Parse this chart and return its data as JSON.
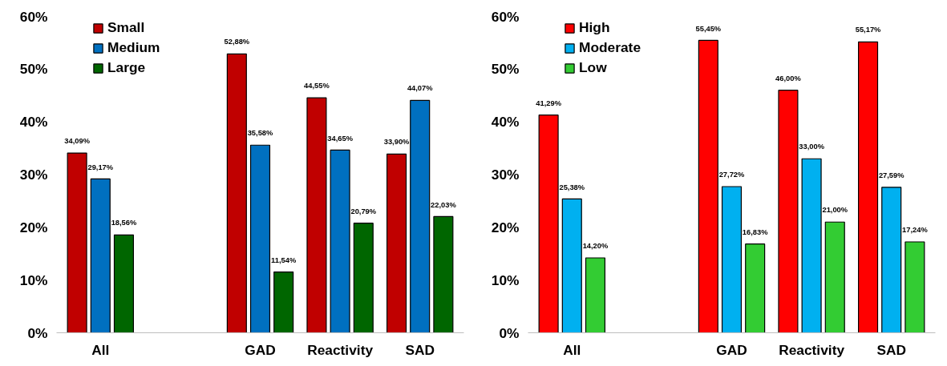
{
  "chart_data": [
    {
      "type": "bar",
      "categories": [
        "All",
        null,
        "GAD",
        "Reactivity",
        "SAD"
      ],
      "ylim": [
        0,
        60
      ],
      "yticks": [
        {
          "value": 0,
          "label": "0%"
        },
        {
          "value": 10,
          "label": "10%"
        },
        {
          "value": 20,
          "label": "20%"
        },
        {
          "value": 30,
          "label": "30%"
        },
        {
          "value": 40,
          "label": "40%"
        },
        {
          "value": 50,
          "label": "50%"
        },
        {
          "value": 60,
          "label": "60%"
        }
      ],
      "grid": false,
      "legend": "top left",
      "series": [
        {
          "name": "Small",
          "color": "#c00000",
          "values": [
            34.09,
            null,
            52.88,
            44.55,
            33.9
          ],
          "value_labels": [
            "34,09%",
            null,
            "52,88%",
            "44,55%",
            "33,90%"
          ]
        },
        {
          "name": "Medium",
          "color": "#0070c0",
          "values": [
            29.17,
            null,
            35.58,
            34.65,
            44.07
          ],
          "value_labels": [
            "29,17%",
            null,
            "35,58%",
            "34,65%",
            "44,07%"
          ]
        },
        {
          "name": "Large",
          "color": "#006600",
          "values": [
            18.56,
            null,
            11.54,
            20.79,
            22.03
          ],
          "value_labels": [
            "18,56%",
            null,
            "11,54%",
            "20,79%",
            "22,03%"
          ]
        }
      ]
    },
    {
      "type": "bar",
      "categories": [
        "All",
        null,
        "GAD",
        "Reactivity",
        "SAD"
      ],
      "ylim": [
        0,
        60
      ],
      "yticks": [
        {
          "value": 0,
          "label": "0%"
        },
        {
          "value": 10,
          "label": "10%"
        },
        {
          "value": 20,
          "label": "20%"
        },
        {
          "value": 30,
          "label": "30%"
        },
        {
          "value": 40,
          "label": "40%"
        },
        {
          "value": 50,
          "label": "50%"
        },
        {
          "value": 60,
          "label": "60%"
        }
      ],
      "grid": false,
      "legend": "top left",
      "series": [
        {
          "name": "High",
          "color": "#ff0000",
          "values": [
            41.29,
            null,
            55.45,
            46.0,
            55.17
          ],
          "value_labels": [
            "41,29%",
            null,
            "55,45%",
            "46,00%",
            "55,17%"
          ]
        },
        {
          "name": "Moderate",
          "color": "#00b0f0",
          "values": [
            25.38,
            null,
            27.72,
            33.0,
            27.59
          ],
          "value_labels": [
            "25,38%",
            null,
            "27,72%",
            "33,00%",
            "27,59%"
          ]
        },
        {
          "name": "Low",
          "color": "#33cc33",
          "values": [
            14.2,
            null,
            16.83,
            21.0,
            17.24
          ],
          "value_labels": [
            "14,20%",
            null,
            "16,83%",
            "21,00%",
            "17,24%"
          ]
        }
      ]
    }
  ]
}
